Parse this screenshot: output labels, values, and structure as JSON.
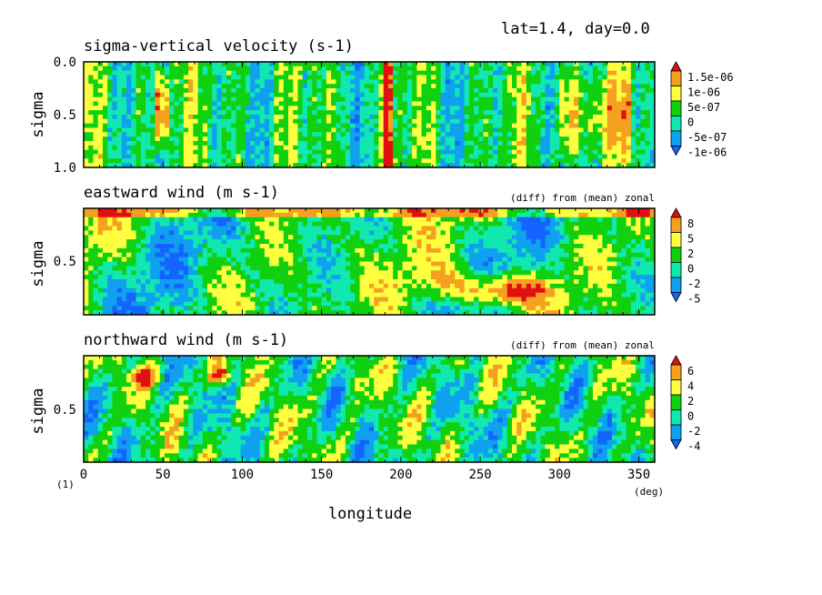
{
  "header": "lat=1.4, day=0.0",
  "xlabel": "longitude",
  "xunit": "(deg)",
  "corner_mark": "(1)",
  "colors": {
    "red": "#e01010",
    "orange": "#f5a020",
    "yellow": "#ffff40",
    "green": "#10d010",
    "cyan": "#10e8b0",
    "lightblue": "#10a0f0",
    "blue": "#1464ff"
  },
  "chart_data": [
    {
      "type": "heatmap",
      "title": "sigma-vertical velocity (s-1)",
      "note": "",
      "xlabel": "longitude",
      "ylabel": "sigma",
      "xlim": [
        0,
        360
      ],
      "ylim": [
        1.0,
        0.0
      ],
      "y_ticks": [
        "0.0",
        "0.5",
        "1.0"
      ],
      "colorbar_labels": [
        "1.5e-06",
        "1e-06",
        "5e-07",
        "0",
        "-5e-07",
        "-1e-06"
      ],
      "colorbar_levels": [
        1.5e-06,
        1e-06,
        5e-07,
        0,
        -5e-07,
        -1e-06
      ],
      "x_tick_labels": [],
      "peaks_lon": [
        50,
        192,
        320,
        285,
        340
      ]
    },
    {
      "type": "heatmap",
      "title": "eastward wind (m s-1)",
      "note": "(diff) from (mean) zonal",
      "xlabel": "longitude",
      "ylabel": "sigma",
      "xlim": [
        0,
        360
      ],
      "ylim": [
        1.0,
        0.0
      ],
      "y_ticks": [
        "0.5"
      ],
      "colorbar_labels": [
        "8",
        "5",
        "2",
        "0",
        "-2",
        "-5"
      ],
      "colorbar_levels": [
        8,
        5,
        2,
        0,
        -2,
        -5
      ],
      "x_tick_labels": [],
      "peaks_lon": [
        270,
        255,
        45,
        125,
        345
      ]
    },
    {
      "type": "heatmap",
      "title": "northward wind (m s-1)",
      "note": "(diff) from (mean) zonal",
      "xlabel": "longitude",
      "ylabel": "sigma",
      "xlim": [
        0,
        360
      ],
      "ylim": [
        1.0,
        0.0
      ],
      "y_ticks": [
        "0.5"
      ],
      "colorbar_labels": [
        "6",
        "4",
        "2",
        "0",
        "-2",
        "-4"
      ],
      "colorbar_levels": [
        6,
        4,
        2,
        0,
        -2,
        -4
      ],
      "x_tick_labels": [
        "0",
        "50",
        "100",
        "150",
        "200",
        "250",
        "300",
        "350"
      ],
      "peaks_lon": [
        38,
        85,
        300,
        235
      ]
    }
  ]
}
